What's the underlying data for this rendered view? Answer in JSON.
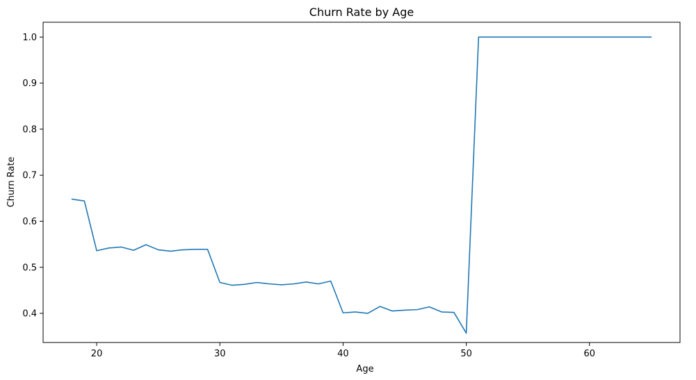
{
  "chart_data": {
    "type": "line",
    "title": "Churn Rate by Age",
    "xlabel": "Age",
    "ylabel": "Churn Rate",
    "xlim": [
      15.65,
      67.35
    ],
    "ylim": [
      0.3367,
      1.0322
    ],
    "x_ticks": [
      20,
      30,
      40,
      50,
      60
    ],
    "y_ticks": [
      0.4,
      0.5,
      0.6,
      0.7,
      0.8,
      0.9,
      1.0
    ],
    "x_tick_labels": [
      "20",
      "30",
      "40",
      "50",
      "60"
    ],
    "y_tick_labels": [
      "0.4",
      "0.5",
      "0.6",
      "0.7",
      "0.8",
      "0.9",
      "1.0"
    ],
    "grid": false,
    "series": [
      {
        "color": "#1f77b4",
        "x": [
          18,
          19,
          20,
          21,
          22,
          23,
          24,
          25,
          26,
          27,
          28,
          29,
          30,
          31,
          32,
          33,
          34,
          35,
          36,
          37,
          38,
          39,
          40,
          41,
          42,
          43,
          44,
          45,
          46,
          47,
          48,
          49,
          50,
          51,
          52,
          53,
          54,
          55,
          56,
          57,
          58,
          59,
          60,
          61,
          62,
          63,
          64,
          65
        ],
        "y": [
          0.648,
          0.644,
          0.536,
          0.542,
          0.544,
          0.537,
          0.549,
          0.538,
          0.535,
          0.538,
          0.539,
          0.539,
          0.467,
          0.461,
          0.463,
          0.467,
          0.464,
          0.462,
          0.464,
          0.468,
          0.464,
          0.47,
          0.401,
          0.403,
          0.4,
          0.415,
          0.405,
          0.407,
          0.408,
          0.414,
          0.403,
          0.402,
          0.357,
          1.0,
          1.0,
          1.0,
          1.0,
          1.0,
          1.0,
          1.0,
          1.0,
          1.0,
          1.0,
          1.0,
          1.0,
          1.0,
          1.0,
          1.0
        ]
      }
    ]
  }
}
